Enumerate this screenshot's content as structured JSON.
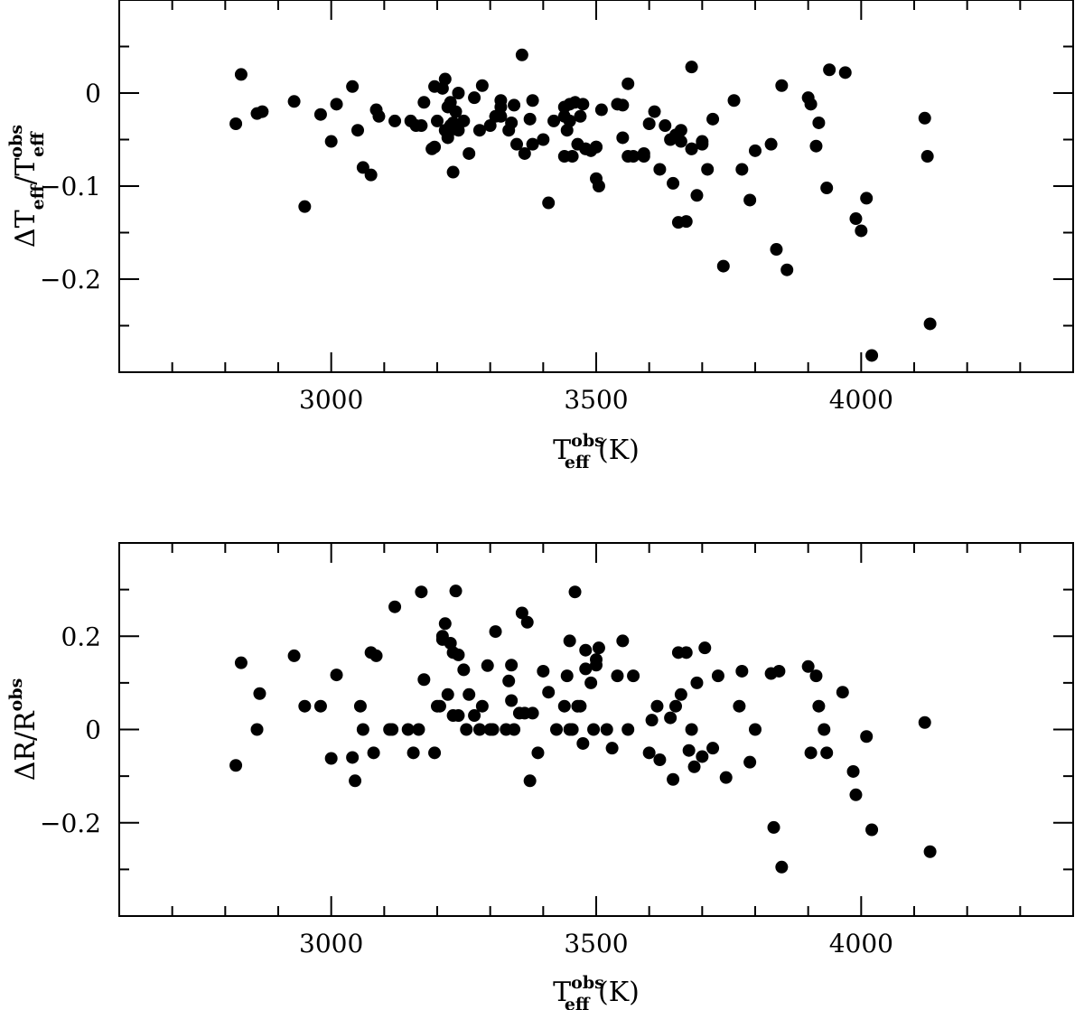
{
  "chart_data": [
    {
      "type": "scatter",
      "xlabel": {
        "main": "T",
        "sub": "eff",
        "sup": "obs",
        "unit": "(K)"
      },
      "ylabel": {
        "prefix": "ΔT",
        "sub": "eff",
        "slash": "/T",
        "sub2": "eff",
        "sup2": "obs"
      },
      "xlim": [
        2600,
        4400
      ],
      "ylim": [
        -0.3,
        0.1
      ],
      "xticks": [
        3000,
        3500,
        4000
      ],
      "xtick_labels": [
        "3000",
        "3500",
        "4000"
      ],
      "yticks": [
        0,
        -0.1,
        -0.2
      ],
      "ytick_labels": [
        "0",
        "−0.1",
        "−0.2"
      ],
      "x": [
        2820,
        2830,
        2860,
        2870,
        2930,
        2950,
        2980,
        3000,
        3010,
        3040,
        3050,
        3060,
        3075,
        3085,
        3090,
        3120,
        3150,
        3160,
        3170,
        3175,
        3190,
        3195,
        3200,
        3210,
        3215,
        3220,
        3225,
        3230,
        3235,
        3240,
        3250,
        3260,
        3270,
        3285,
        3300,
        3310,
        3320,
        3335,
        3345,
        3350,
        3360,
        3365,
        3375,
        3380,
        3400,
        3410,
        3420,
        3440,
        3445,
        3450,
        3455,
        3460,
        3465,
        3470,
        3475,
        3480,
        3490,
        3500,
        3505,
        3510,
        3540,
        3550,
        3560,
        3570,
        3590,
        3600,
        3620,
        3630,
        3645,
        3655,
        3670,
        3680,
        3690,
        3700,
        3710,
        3720,
        3740,
        3760,
        3775,
        3790,
        3800,
        3830,
        3840,
        3850,
        3860,
        3900,
        3905,
        3915,
        3920,
        3935,
        3940,
        3970,
        3990,
        4000,
        4010,
        4020,
        4120,
        4125,
        4130,
        3195,
        3215,
        3225,
        3280,
        3320,
        3340,
        3380,
        3440,
        3450,
        3500,
        3560,
        3610,
        3650,
        3660,
        3680,
        3700,
        3220,
        3230,
        3440,
        3500,
        3640,
        3660,
        3680,
        3220,
        3240,
        3320,
        3480,
        3550,
        3590
      ],
      "y": [
        -0.033,
        0.02,
        -0.022,
        -0.02,
        -0.009,
        -0.122,
        -0.023,
        -0.052,
        -0.012,
        0.007,
        -0.04,
        -0.08,
        -0.088,
        -0.018,
        -0.025,
        -0.03,
        -0.03,
        -0.035,
        -0.035,
        -0.01,
        -0.06,
        0.007,
        -0.03,
        0.005,
        0.015,
        -0.015,
        -0.01,
        -0.085,
        -0.02,
        0.0,
        -0.03,
        -0.065,
        -0.005,
        0.008,
        -0.035,
        -0.025,
        -0.008,
        -0.04,
        -0.013,
        -0.055,
        0.041,
        -0.065,
        -0.028,
        -0.008,
        -0.05,
        -0.118,
        -0.03,
        -0.025,
        -0.04,
        -0.012,
        -0.068,
        -0.01,
        -0.055,
        -0.025,
        -0.012,
        -0.06,
        -0.062,
        -0.092,
        -0.1,
        -0.018,
        -0.012,
        -0.013,
        0.01,
        -0.068,
        -0.065,
        -0.033,
        -0.082,
        -0.035,
        -0.097,
        -0.139,
        -0.138,
        0.028,
        -0.11,
        -0.052,
        -0.082,
        -0.028,
        -0.186,
        -0.008,
        -0.082,
        -0.115,
        -0.062,
        -0.055,
        -0.168,
        0.008,
        -0.19,
        -0.005,
        -0.012,
        -0.057,
        -0.032,
        -0.102,
        0.025,
        0.022,
        -0.135,
        -0.148,
        -0.113,
        -0.282,
        -0.027,
        -0.068,
        -0.248,
        -0.058,
        -0.04,
        -0.035,
        -0.04,
        -0.025,
        -0.032,
        -0.055,
        -0.068,
        -0.03,
        -0.058,
        -0.068,
        -0.02,
        -0.045,
        -0.052,
        -0.06,
        -0.055,
        -0.048,
        -0.032,
        -0.015,
        -0.058,
        -0.05,
        -0.04,
        -0.06,
        -0.045,
        -0.04,
        -0.015,
        -0.06,
        -0.048,
        -0.068
      ],
      "grid": false
    },
    {
      "type": "scatter",
      "xlabel": {
        "main": "T",
        "sub": "eff",
        "sup": "obs",
        "unit": "(K)"
      },
      "ylabel": {
        "prefix": "ΔR/R",
        "sup": "obs"
      },
      "xlim": [
        2600,
        4400
      ],
      "ylim": [
        -0.4,
        0.4
      ],
      "xticks": [
        3000,
        3500,
        4000
      ],
      "xtick_labels": [
        "3000",
        "3500",
        "4000"
      ],
      "yticks": [
        0.2,
        0,
        -0.2
      ],
      "ytick_labels": [
        "0.2",
        "0",
        "−0.2"
      ],
      "x": [
        2820,
        2830,
        2860,
        2865,
        2930,
        2950,
        2980,
        3000,
        3010,
        3040,
        3045,
        3055,
        3060,
        3075,
        3080,
        3085,
        3110,
        3115,
        3120,
        3145,
        3155,
        3165,
        3170,
        3175,
        3195,
        3200,
        3205,
        3210,
        3215,
        3220,
        3225,
        3230,
        3235,
        3240,
        3250,
        3255,
        3260,
        3270,
        3280,
        3285,
        3295,
        3300,
        3305,
        3310,
        3330,
        3335,
        3340,
        3345,
        3355,
        3360,
        3365,
        3370,
        3375,
        3380,
        3390,
        3400,
        3410,
        3425,
        3440,
        3445,
        3450,
        3455,
        3460,
        3465,
        3470,
        3475,
        3480,
        3490,
        3495,
        3500,
        3505,
        3520,
        3530,
        3540,
        3550,
        3560,
        3570,
        3600,
        3605,
        3615,
        3620,
        3640,
        3645,
        3650,
        3655,
        3660,
        3670,
        3675,
        3680,
        3685,
        3690,
        3700,
        3705,
        3720,
        3730,
        3745,
        3770,
        3775,
        3790,
        3800,
        3830,
        3835,
        3845,
        3850,
        3900,
        3905,
        3915,
        3920,
        3930,
        3935,
        3965,
        3985,
        3990,
        4010,
        4020,
        4120,
        4130,
        3230,
        3480,
        3500,
        3340,
        3210,
        3450,
        3240
      ],
      "y": [
        -0.077,
        0.143,
        0.0,
        0.077,
        0.158,
        0.05,
        0.05,
        -0.062,
        0.117,
        -0.06,
        -0.11,
        0.05,
        0.0,
        0.165,
        -0.05,
        0.158,
        0.0,
        0.0,
        0.263,
        0.0,
        -0.05,
        0.0,
        0.295,
        0.107,
        -0.05,
        0.05,
        0.05,
        0.193,
        0.227,
        0.075,
        0.185,
        0.165,
        0.297,
        0.03,
        0.128,
        0.0,
        0.075,
        0.03,
        0.0,
        0.05,
        0.137,
        0.0,
        0.0,
        0.21,
        0.0,
        0.104,
        0.138,
        0.0,
        0.035,
        0.25,
        0.035,
        0.23,
        -0.11,
        0.035,
        -0.05,
        0.125,
        0.08,
        0.0,
        0.05,
        0.115,
        0.0,
        0.0,
        0.295,
        0.05,
        0.05,
        -0.03,
        0.17,
        0.1,
        0.0,
        0.15,
        0.175,
        0.0,
        -0.04,
        0.115,
        0.19,
        0.0,
        0.115,
        -0.05,
        0.02,
        0.05,
        -0.065,
        0.025,
        -0.107,
        0.05,
        0.165,
        0.075,
        0.165,
        -0.045,
        0.0,
        -0.08,
        0.1,
        -0.058,
        0.175,
        -0.04,
        0.115,
        -0.103,
        0.05,
        0.125,
        -0.07,
        0.0,
        0.12,
        -0.21,
        0.125,
        -0.295,
        0.135,
        -0.05,
        0.115,
        0.05,
        0.0,
        -0.05,
        0.08,
        -0.09,
        -0.14,
        -0.015,
        -0.215,
        0.015,
        -0.262,
        0.03,
        0.13,
        0.138,
        0.062,
        0.2,
        0.19,
        0.16
      ],
      "grid": false
    }
  ]
}
